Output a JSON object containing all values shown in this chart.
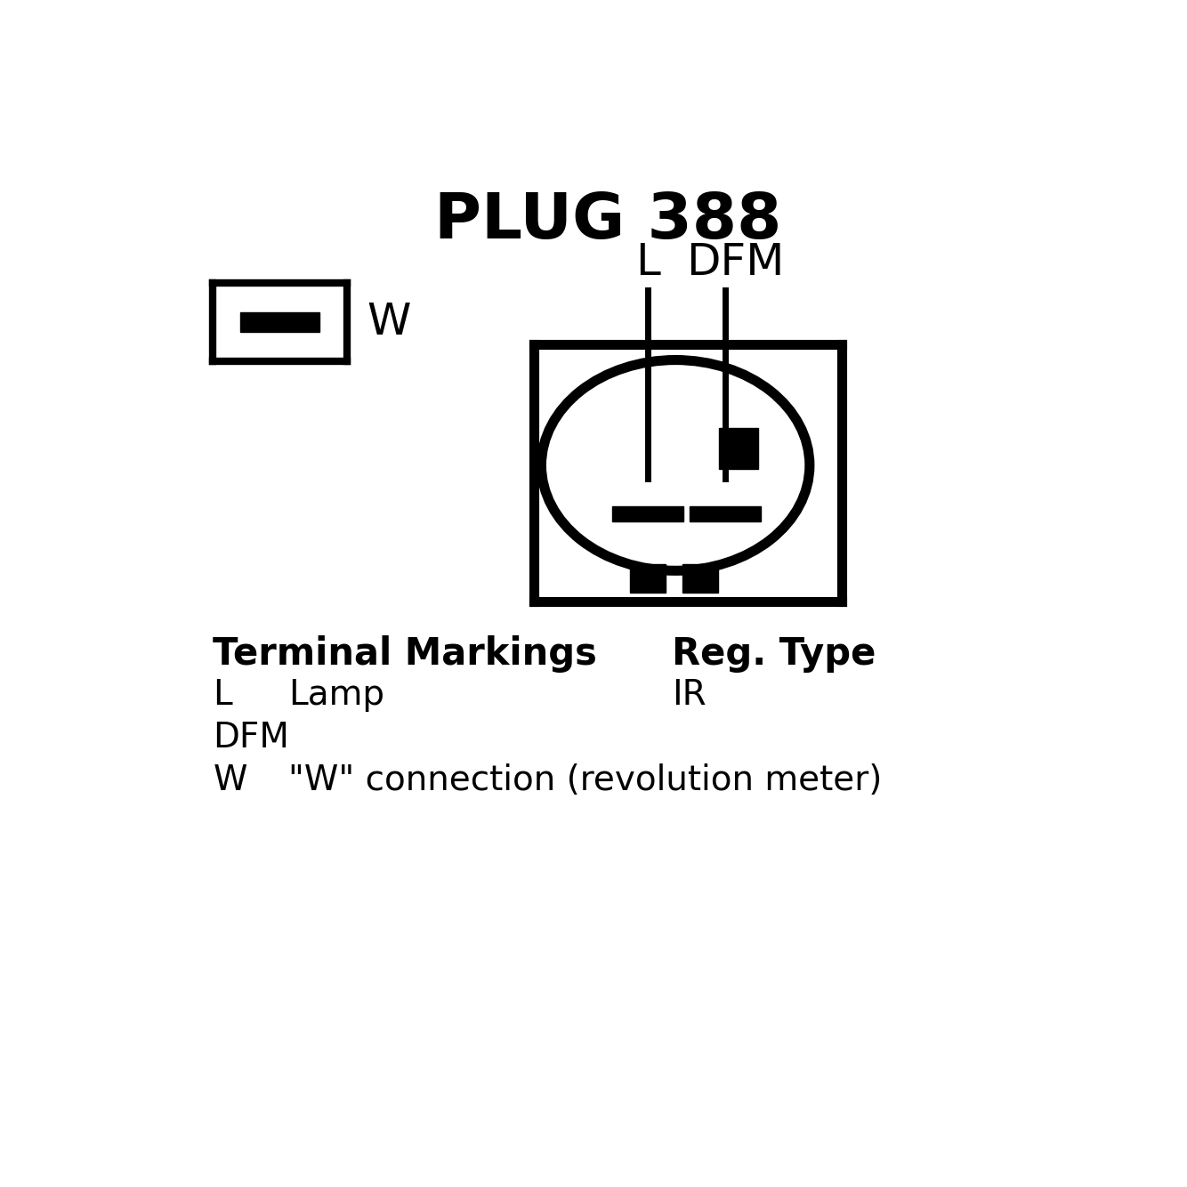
{
  "title": "PLUG 388",
  "bg": "#ffffff",
  "fg": "#000000",
  "title_fs": 52,
  "label_fs": 36,
  "body_bold_fs": 30,
  "body_fs": 28,
  "terminal_markings": "Terminal Markings",
  "reg_type": "Reg. Type",
  "IR": "IR",
  "W_desc": "\"W\" connection (revolution meter)"
}
